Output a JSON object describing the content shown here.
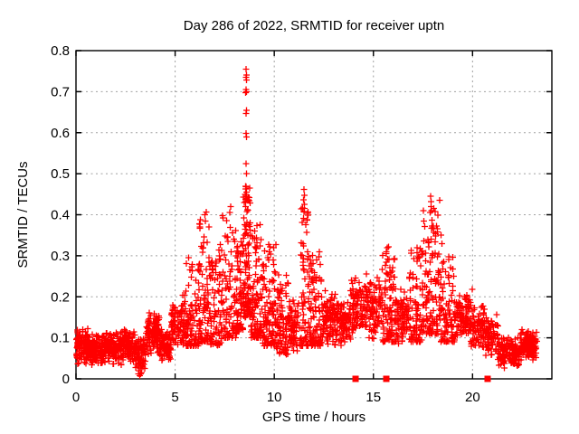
{
  "page": {
    "background": "#ffffff"
  },
  "chart_data": {
    "type": "scatter",
    "title": "Day 286 of 2022, SRMTID for receiver uptn",
    "xlabel": "GPS time / hours",
    "ylabel": "SRMTID / TECUs",
    "xlim": [
      0,
      24
    ],
    "ylim": [
      0,
      0.8
    ],
    "xticks": [
      0,
      5,
      10,
      15,
      20
    ],
    "xtick_labels": [
      "0",
      "5",
      "10",
      "15",
      "20"
    ],
    "yticks": [
      0,
      0.1,
      0.2,
      0.3,
      0.4,
      0.5,
      0.6,
      0.7,
      0.8
    ],
    "ytick_labels": [
      "0",
      "0.1",
      "0.2",
      "0.3",
      "0.4",
      "0.5",
      "0.6",
      "0.7",
      "0.8"
    ],
    "grid": true,
    "legend": "none",
    "marker": "plus",
    "marker_color": "#ff0000",
    "grid_color": "#a0a0a0",
    "axis_color": "#000000",
    "seed": 20221013,
    "density_segments": [
      [
        0.02,
        0.7,
        0.035,
        0.125,
        120,
        "band"
      ],
      [
        0.7,
        1.5,
        0.03,
        0.115,
        130,
        "band"
      ],
      [
        1.5,
        2.3,
        0.03,
        0.12,
        120,
        "band"
      ],
      [
        2.3,
        3.0,
        0.035,
        0.13,
        110,
        "band"
      ],
      [
        3.0,
        3.5,
        0.02,
        0.1,
        80,
        "band"
      ],
      [
        3.5,
        4.2,
        0.06,
        0.165,
        110,
        "band"
      ],
      [
        4.2,
        4.8,
        0.04,
        0.125,
        90,
        "band"
      ],
      [
        4.8,
        5.5,
        0.07,
        0.21,
        90,
        "band"
      ],
      [
        5.5,
        6.2,
        0.08,
        0.3,
        90,
        "tail"
      ],
      [
        6.2,
        6.7,
        0.09,
        0.41,
        80,
        "tail"
      ],
      [
        6.7,
        7.4,
        0.08,
        0.33,
        90,
        "tail"
      ],
      [
        7.4,
        8.1,
        0.1,
        0.42,
        90,
        "tail"
      ],
      [
        8.1,
        8.45,
        0.12,
        0.35,
        70,
        "tail"
      ],
      [
        8.45,
        8.8,
        0.15,
        0.47,
        100,
        "tail"
      ],
      [
        8.8,
        9.4,
        0.1,
        0.38,
        100,
        "tail"
      ],
      [
        9.4,
        10.1,
        0.08,
        0.33,
        110,
        "tail"
      ],
      [
        10.1,
        10.7,
        0.06,
        0.26,
        90,
        "tail"
      ],
      [
        10.7,
        11.3,
        0.05,
        0.2,
        80,
        "band"
      ],
      [
        11.3,
        11.75,
        0.08,
        0.42,
        70,
        "tail"
      ],
      [
        11.75,
        12.4,
        0.08,
        0.31,
        100,
        "tail"
      ],
      [
        12.4,
        13.1,
        0.07,
        0.22,
        100,
        "band"
      ],
      [
        13.1,
        13.8,
        0.08,
        0.2,
        95,
        "band"
      ],
      [
        13.8,
        14.6,
        0.09,
        0.26,
        95,
        "band"
      ],
      [
        14.6,
        15.4,
        0.09,
        0.28,
        95,
        "band"
      ],
      [
        15.4,
        16.1,
        0.09,
        0.33,
        95,
        "tail"
      ],
      [
        16.1,
        16.8,
        0.07,
        0.23,
        95,
        "band"
      ],
      [
        16.8,
        17.45,
        0.09,
        0.32,
        85,
        "tail"
      ],
      [
        17.45,
        18.35,
        0.11,
        0.44,
        130,
        "tail"
      ],
      [
        18.35,
        19.1,
        0.09,
        0.31,
        95,
        "tail"
      ],
      [
        19.1,
        19.9,
        0.09,
        0.22,
        95,
        "band"
      ],
      [
        19.9,
        20.6,
        0.07,
        0.185,
        85,
        "band"
      ],
      [
        20.6,
        21.3,
        0.04,
        0.16,
        85,
        "band"
      ],
      [
        21.3,
        22.4,
        0.025,
        0.105,
        140,
        "band"
      ],
      [
        22.4,
        23.25,
        0.035,
        0.125,
        120,
        "band"
      ]
    ],
    "outlier_points": [
      [
        8.58,
        0.755
      ],
      [
        8.6,
        0.74
      ],
      [
        8.57,
        0.735
      ],
      [
        8.59,
        0.728
      ],
      [
        8.58,
        0.705
      ],
      [
        8.6,
        0.7
      ],
      [
        8.56,
        0.698
      ],
      [
        8.59,
        0.655
      ],
      [
        8.58,
        0.647
      ],
      [
        8.57,
        0.598
      ],
      [
        8.6,
        0.589
      ],
      [
        8.58,
        0.524
      ],
      [
        8.59,
        0.5
      ],
      [
        8.57,
        0.468
      ],
      [
        8.6,
        0.455
      ],
      [
        8.58,
        0.445
      ],
      [
        8.61,
        0.44
      ],
      [
        8.56,
        0.432
      ],
      [
        11.5,
        0.462
      ],
      [
        11.53,
        0.447
      ],
      [
        11.48,
        0.436
      ],
      [
        11.51,
        0.425
      ],
      [
        11.5,
        0.408
      ],
      [
        17.88,
        0.445
      ],
      [
        17.92,
        0.432
      ],
      [
        17.9,
        0.42
      ],
      [
        17.94,
        0.41
      ],
      [
        17.86,
        0.405
      ],
      [
        18.4,
        0.35
      ],
      [
        18.45,
        0.33
      ],
      [
        19.98,
        0.218
      ],
      [
        6.5,
        0.4
      ],
      [
        6.53,
        0.385
      ],
      [
        7.8,
        0.42
      ],
      [
        7.76,
        0.405
      ],
      [
        3.15,
        0.012
      ],
      [
        3.22,
        0.008
      ],
      [
        3.3,
        0.015
      ],
      [
        3.18,
        0.02
      ],
      [
        3.26,
        0.012
      ]
    ],
    "zero_square_markers_x": [
      14.1,
      15.65,
      20.76
    ],
    "max_point": [
      8.58,
      0.755
    ]
  }
}
